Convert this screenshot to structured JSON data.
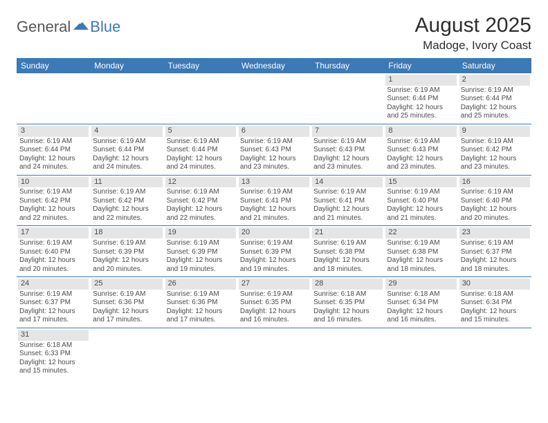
{
  "logo": {
    "text1": "General",
    "text2": "Blue"
  },
  "title": "August 2025",
  "location": "Madoge, Ivory Coast",
  "colors": {
    "accent": "#3b79b7",
    "daybar": "#e5e5e5",
    "text": "#4a4a4a",
    "bg": "#ffffff"
  },
  "weekdays": [
    "Sunday",
    "Monday",
    "Tuesday",
    "Wednesday",
    "Thursday",
    "Friday",
    "Saturday"
  ],
  "weeks": [
    [
      null,
      null,
      null,
      null,
      null,
      {
        "n": "1",
        "sr": "Sunrise: 6:19 AM",
        "ss": "Sunset: 6:44 PM",
        "d1": "Daylight: 12 hours",
        "d2": "and 25 minutes."
      },
      {
        "n": "2",
        "sr": "Sunrise: 6:19 AM",
        "ss": "Sunset: 6:44 PM",
        "d1": "Daylight: 12 hours",
        "d2": "and 25 minutes."
      }
    ],
    [
      {
        "n": "3",
        "sr": "Sunrise: 6:19 AM",
        "ss": "Sunset: 6:44 PM",
        "d1": "Daylight: 12 hours",
        "d2": "and 24 minutes."
      },
      {
        "n": "4",
        "sr": "Sunrise: 6:19 AM",
        "ss": "Sunset: 6:44 PM",
        "d1": "Daylight: 12 hours",
        "d2": "and 24 minutes."
      },
      {
        "n": "5",
        "sr": "Sunrise: 6:19 AM",
        "ss": "Sunset: 6:44 PM",
        "d1": "Daylight: 12 hours",
        "d2": "and 24 minutes."
      },
      {
        "n": "6",
        "sr": "Sunrise: 6:19 AM",
        "ss": "Sunset: 6:43 PM",
        "d1": "Daylight: 12 hours",
        "d2": "and 23 minutes."
      },
      {
        "n": "7",
        "sr": "Sunrise: 6:19 AM",
        "ss": "Sunset: 6:43 PM",
        "d1": "Daylight: 12 hours",
        "d2": "and 23 minutes."
      },
      {
        "n": "8",
        "sr": "Sunrise: 6:19 AM",
        "ss": "Sunset: 6:43 PM",
        "d1": "Daylight: 12 hours",
        "d2": "and 23 minutes."
      },
      {
        "n": "9",
        "sr": "Sunrise: 6:19 AM",
        "ss": "Sunset: 6:42 PM",
        "d1": "Daylight: 12 hours",
        "d2": "and 23 minutes."
      }
    ],
    [
      {
        "n": "10",
        "sr": "Sunrise: 6:19 AM",
        "ss": "Sunset: 6:42 PM",
        "d1": "Daylight: 12 hours",
        "d2": "and 22 minutes."
      },
      {
        "n": "11",
        "sr": "Sunrise: 6:19 AM",
        "ss": "Sunset: 6:42 PM",
        "d1": "Daylight: 12 hours",
        "d2": "and 22 minutes."
      },
      {
        "n": "12",
        "sr": "Sunrise: 6:19 AM",
        "ss": "Sunset: 6:42 PM",
        "d1": "Daylight: 12 hours",
        "d2": "and 22 minutes."
      },
      {
        "n": "13",
        "sr": "Sunrise: 6:19 AM",
        "ss": "Sunset: 6:41 PM",
        "d1": "Daylight: 12 hours",
        "d2": "and 21 minutes."
      },
      {
        "n": "14",
        "sr": "Sunrise: 6:19 AM",
        "ss": "Sunset: 6:41 PM",
        "d1": "Daylight: 12 hours",
        "d2": "and 21 minutes."
      },
      {
        "n": "15",
        "sr": "Sunrise: 6:19 AM",
        "ss": "Sunset: 6:40 PM",
        "d1": "Daylight: 12 hours",
        "d2": "and 21 minutes."
      },
      {
        "n": "16",
        "sr": "Sunrise: 6:19 AM",
        "ss": "Sunset: 6:40 PM",
        "d1": "Daylight: 12 hours",
        "d2": "and 20 minutes."
      }
    ],
    [
      {
        "n": "17",
        "sr": "Sunrise: 6:19 AM",
        "ss": "Sunset: 6:40 PM",
        "d1": "Daylight: 12 hours",
        "d2": "and 20 minutes."
      },
      {
        "n": "18",
        "sr": "Sunrise: 6:19 AM",
        "ss": "Sunset: 6:39 PM",
        "d1": "Daylight: 12 hours",
        "d2": "and 20 minutes."
      },
      {
        "n": "19",
        "sr": "Sunrise: 6:19 AM",
        "ss": "Sunset: 6:39 PM",
        "d1": "Daylight: 12 hours",
        "d2": "and 19 minutes."
      },
      {
        "n": "20",
        "sr": "Sunrise: 6:19 AM",
        "ss": "Sunset: 6:39 PM",
        "d1": "Daylight: 12 hours",
        "d2": "and 19 minutes."
      },
      {
        "n": "21",
        "sr": "Sunrise: 6:19 AM",
        "ss": "Sunset: 6:38 PM",
        "d1": "Daylight: 12 hours",
        "d2": "and 18 minutes."
      },
      {
        "n": "22",
        "sr": "Sunrise: 6:19 AM",
        "ss": "Sunset: 6:38 PM",
        "d1": "Daylight: 12 hours",
        "d2": "and 18 minutes."
      },
      {
        "n": "23",
        "sr": "Sunrise: 6:19 AM",
        "ss": "Sunset: 6:37 PM",
        "d1": "Daylight: 12 hours",
        "d2": "and 18 minutes."
      }
    ],
    [
      {
        "n": "24",
        "sr": "Sunrise: 6:19 AM",
        "ss": "Sunset: 6:37 PM",
        "d1": "Daylight: 12 hours",
        "d2": "and 17 minutes."
      },
      {
        "n": "25",
        "sr": "Sunrise: 6:19 AM",
        "ss": "Sunset: 6:36 PM",
        "d1": "Daylight: 12 hours",
        "d2": "and 17 minutes."
      },
      {
        "n": "26",
        "sr": "Sunrise: 6:19 AM",
        "ss": "Sunset: 6:36 PM",
        "d1": "Daylight: 12 hours",
        "d2": "and 17 minutes."
      },
      {
        "n": "27",
        "sr": "Sunrise: 6:19 AM",
        "ss": "Sunset: 6:35 PM",
        "d1": "Daylight: 12 hours",
        "d2": "and 16 minutes."
      },
      {
        "n": "28",
        "sr": "Sunrise: 6:18 AM",
        "ss": "Sunset: 6:35 PM",
        "d1": "Daylight: 12 hours",
        "d2": "and 16 minutes."
      },
      {
        "n": "29",
        "sr": "Sunrise: 6:18 AM",
        "ss": "Sunset: 6:34 PM",
        "d1": "Daylight: 12 hours",
        "d2": "and 16 minutes."
      },
      {
        "n": "30",
        "sr": "Sunrise: 6:18 AM",
        "ss": "Sunset: 6:34 PM",
        "d1": "Daylight: 12 hours",
        "d2": "and 15 minutes."
      }
    ],
    [
      {
        "n": "31",
        "sr": "Sunrise: 6:18 AM",
        "ss": "Sunset: 6:33 PM",
        "d1": "Daylight: 12 hours",
        "d2": "and 15 minutes."
      },
      null,
      null,
      null,
      null,
      null,
      null
    ]
  ]
}
